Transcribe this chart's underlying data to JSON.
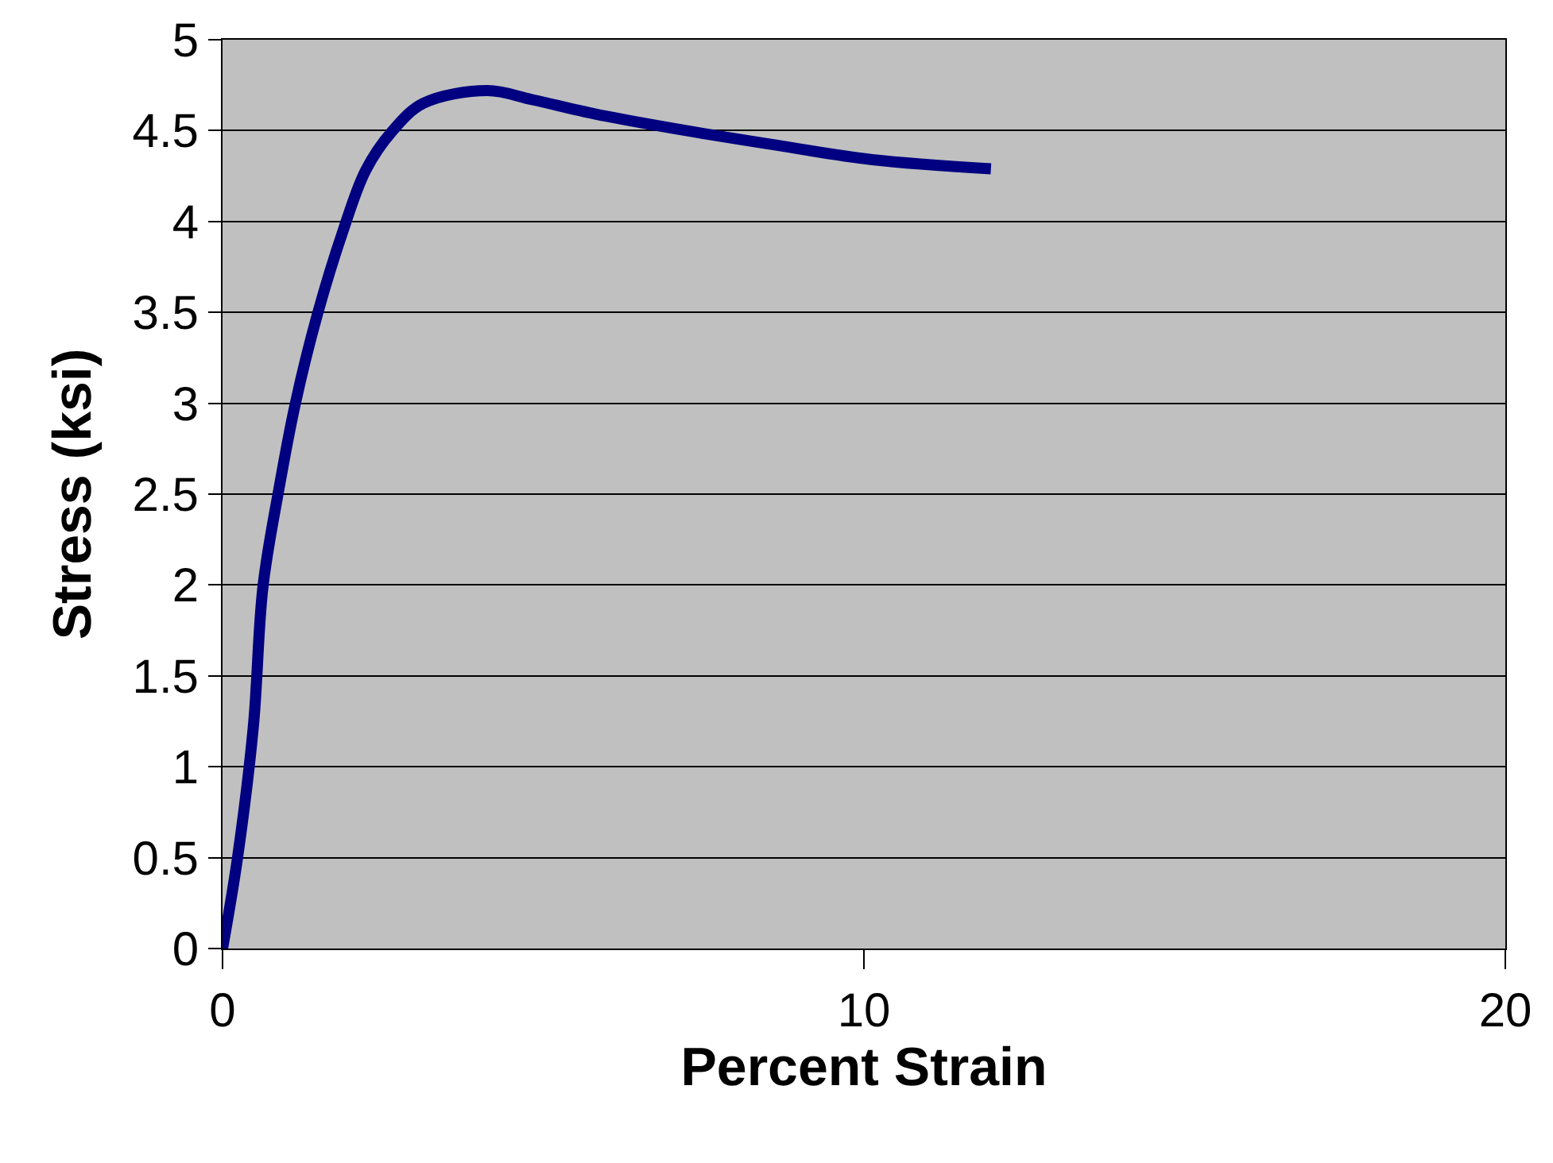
{
  "chart_data": {
    "type": "line",
    "xlabel": "Percent Strain",
    "ylabel": "Stress (ksi)",
    "series": [
      {
        "color": "#000080",
        "x": [
          0,
          0.23,
          0.48,
          0.63,
          0.88,
          1.13,
          1.48,
          1.88,
          2.23,
          2.63,
          3.13,
          4.13,
          4.83,
          5.83,
          7.23,
          8.63,
          10.13,
          11.98
        ],
        "values": [
          0,
          0.49,
          1.22,
          1.99,
          2.53,
          2.99,
          3.49,
          3.95,
          4.28,
          4.49,
          4.65,
          4.72,
          4.67,
          4.59,
          4.5,
          4.42,
          4.34,
          4.29
        ]
      }
    ],
    "xlim": [
      0,
      20
    ],
    "xticks": [
      0,
      10,
      20
    ],
    "ylim": [
      0,
      5
    ],
    "yticks": [
      0,
      0.5,
      1,
      1.5,
      2,
      2.5,
      3,
      3.5,
      4,
      4.5,
      5
    ],
    "grid": "y",
    "marker": "none",
    "line_style": "solid"
  }
}
